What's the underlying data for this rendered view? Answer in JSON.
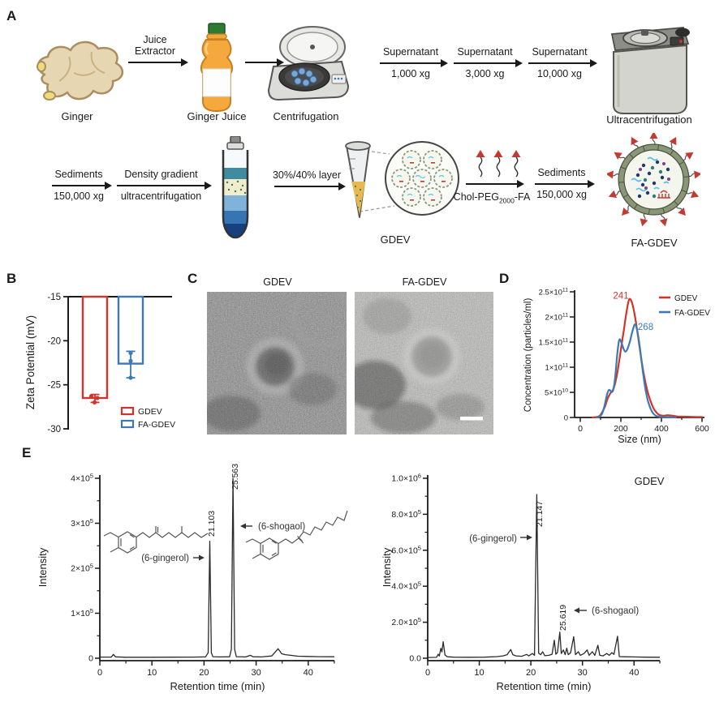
{
  "figure": {
    "panel_labels": {
      "a": "A",
      "b": "B",
      "c": "C",
      "d": "D",
      "e": "E"
    }
  },
  "panel_a": {
    "ginger": "Ginger",
    "ginger_juice": "Ginger Juice",
    "centrifugation": "Centrifugation",
    "ultracentrifugation": "Ultracentrifugation",
    "juice_extractor_line1": "Juice",
    "juice_extractor_line2": "Extractor",
    "supernatant1_top": "Supernatant",
    "supernatant1_bottom": "1,000 xg",
    "supernatant2_top": "Supernatant",
    "supernatant2_bottom": "3,000 xg",
    "supernatant3_top": "Supernatant",
    "supernatant3_bottom": "10,000 xg",
    "sediments1_top": "Sediments",
    "sediments1_bottom": "150,000 xg",
    "density_top": "Density gradient",
    "density_bottom": "ultracentrifugation",
    "layer_top": "30%/40% layer",
    "chol_main": "Chol-PEG",
    "chol_sub": "2000",
    "chol_suffix": "-FA",
    "sediments2_top": "Sediments",
    "sediments2_bottom": "150,000 xg",
    "gdev": "GDEV",
    "fa_gdev": "FA-GDEV"
  },
  "panel_c": {
    "left_title": "GDEV",
    "right_title": "FA-GDEV"
  },
  "colors": {
    "red": "#d0342b",
    "blue": "#3d7ab5",
    "line": "#2a2a2a"
  },
  "chart_data": [
    {
      "id": "zeta",
      "type": "bar",
      "ylabel": "Zeta Potential (mV)",
      "ylim": [
        -15,
        -30
      ],
      "yticks": [
        -15,
        -20,
        -25,
        -30
      ],
      "series": [
        {
          "name": "GDEV",
          "color": "#d0342b",
          "mean": -26.5,
          "err": [
            -27.0,
            -26.1
          ],
          "points": [
            -26.3,
            -26.5,
            -27.0
          ]
        },
        {
          "name": "FA-GDEV",
          "color": "#3d7ab5",
          "mean": -22.6,
          "err": [
            -24.2,
            -21.2
          ],
          "points": [
            -21.4,
            -22.3,
            -24.2
          ]
        }
      ]
    },
    {
      "id": "size",
      "type": "line",
      "xlabel": "Size (nm)",
      "ylabel": "Concentration (particles/ml)",
      "xlim": [
        0,
        600
      ],
      "xticks": [
        0,
        200,
        400,
        600
      ],
      "xticks_minor": [
        100,
        300,
        500
      ],
      "ylim": [
        0,
        250000000000.0
      ],
      "yticks": [
        {
          "label": "0",
          "v": 0
        },
        {
          "label": "5×10^10",
          "v": 50000000000.0
        },
        {
          "label": "1×10^11",
          "v": 100000000000.0
        },
        {
          "label": "1.5×10^11",
          "v": 150000000000.0
        },
        {
          "label": "2×10^11",
          "v": 200000000000.0
        },
        {
          "label": "2.5×10^11",
          "v": 250000000000.0
        }
      ],
      "legend": [
        {
          "name": "GDEV",
          "color": "#d0342b"
        },
        {
          "name": "FA-GDEV",
          "color": "#3d7ab5"
        }
      ],
      "annotations": [
        {
          "text": "241",
          "color": "#d0342b",
          "x": 200,
          "y": 236000000000.0
        },
        {
          "text": "268",
          "color": "#3d7ab5",
          "x": 322,
          "y": 174000000000.0
        }
      ],
      "series": [
        {
          "name": "GDEV",
          "color": "#d0342b",
          "points": [
            [
              60,
              0
            ],
            [
              80,
              1000000000.0
            ],
            [
              95,
              3000000000.0
            ],
            [
              110,
              12000000000.0
            ],
            [
              122,
              22000000000.0
            ],
            [
              135,
              38000000000.0
            ],
            [
              148,
              48000000000.0
            ],
            [
              160,
              54000000000.0
            ],
            [
              172,
              68000000000.0
            ],
            [
              185,
              95000000000.0
            ],
            [
              200,
              135000000000.0
            ],
            [
              215,
              175000000000.0
            ],
            [
              228,
              210000000000.0
            ],
            [
              241,
              235000000000.0
            ],
            [
              255,
              228000000000.0
            ],
            [
              270,
              200000000000.0
            ],
            [
              285,
              160000000000.0
            ],
            [
              300,
              118000000000.0
            ],
            [
              315,
              82000000000.0
            ],
            [
              330,
              54000000000.0
            ],
            [
              345,
              34000000000.0
            ],
            [
              360,
              19000000000.0
            ],
            [
              375,
              10000000000.0
            ],
            [
              390,
              5000000000.0
            ],
            [
              410,
              3500000000.0
            ],
            [
              430,
              4500000000.0
            ],
            [
              455,
              3500000000.0
            ],
            [
              480,
              2000000000.0
            ],
            [
              520,
              1500000000.0
            ],
            [
              560,
              1000000000.0
            ],
            [
              600,
              800000000.0
            ]
          ]
        },
        {
          "name": "FA-GDEV",
          "color": "#3d7ab5",
          "points": [
            [
              82,
              0
            ],
            [
              95,
              2000000000.0
            ],
            [
              108,
              8000000000.0
            ],
            [
              120,
              24000000000.0
            ],
            [
              132,
              46000000000.0
            ],
            [
              142,
              55000000000.0
            ],
            [
              152,
              52000000000.0
            ],
            [
              162,
              54000000000.0
            ],
            [
              172,
              80000000000.0
            ],
            [
              182,
              125000000000.0
            ],
            [
              192,
              154000000000.0
            ],
            [
              202,
              150000000000.0
            ],
            [
              212,
              138000000000.0
            ],
            [
              222,
              131000000000.0
            ],
            [
              232,
              136000000000.0
            ],
            [
              245,
              152000000000.0
            ],
            [
              256,
              170000000000.0
            ],
            [
              268,
              185000000000.0
            ],
            [
              278,
              178000000000.0
            ],
            [
              290,
              150000000000.0
            ],
            [
              302,
              112000000000.0
            ],
            [
              315,
              72000000000.0
            ],
            [
              328,
              42000000000.0
            ],
            [
              342,
              22000000000.0
            ],
            [
              356,
              10000000000.0
            ],
            [
              370,
              4000000000.0
            ],
            [
              390,
              1500000000.0
            ],
            [
              420,
              800000000.0
            ],
            [
              455,
              300000000.0
            ],
            [
              470,
              0
            ]
          ]
        }
      ]
    },
    {
      "id": "hplc_std",
      "type": "line",
      "xlabel": "Retention time (min)",
      "ylabel": "Intensity",
      "xlim": [
        0,
        45
      ],
      "xticks": [
        0,
        10,
        20,
        30,
        40
      ],
      "xticks_minor": [
        5,
        15,
        25,
        35,
        45
      ],
      "ylim": [
        0,
        400000.0
      ],
      "yticks": [
        {
          "label": "0",
          "v": 0
        },
        {
          "label": "1×10^5",
          "v": 100000.0
        },
        {
          "label": "2×10^5",
          "v": 200000.0
        },
        {
          "label": "3×10^5",
          "v": 300000.0
        },
        {
          "label": "4×10^5",
          "v": 400000.0
        }
      ],
      "peaks": [
        {
          "label": "21.103",
          "t": 21.103,
          "height": 260000.0
        },
        {
          "label": "25.563",
          "t": 25.563,
          "height": 400000.0
        }
      ],
      "compounds": [
        {
          "text": "(6-gingerol)"
        },
        {
          "text": "(6-shogaol)"
        }
      ],
      "points": [
        [
          0,
          2500
        ],
        [
          2.2,
          2500
        ],
        [
          2.6,
          8500
        ],
        [
          3.0,
          3000
        ],
        [
          5,
          2200
        ],
        [
          10,
          2200
        ],
        [
          14,
          2400
        ],
        [
          18,
          2600
        ],
        [
          20.3,
          3000
        ],
        [
          20.8,
          12000
        ],
        [
          21.103,
          260000
        ],
        [
          21.4,
          12000
        ],
        [
          21.7,
          3500
        ],
        [
          23,
          2800
        ],
        [
          24.9,
          3200
        ],
        [
          25.25,
          20000
        ],
        [
          25.563,
          400000
        ],
        [
          25.88,
          20000
        ],
        [
          26.2,
          3500
        ],
        [
          28,
          2800
        ],
        [
          28.9,
          6500
        ],
        [
          29.4,
          3200
        ],
        [
          31,
          2800
        ],
        [
          33,
          5000
        ],
        [
          34.2,
          21000
        ],
        [
          34.9,
          10000
        ],
        [
          35.6,
          8000
        ],
        [
          36.6,
          6500
        ],
        [
          38,
          4500
        ],
        [
          40,
          4000
        ],
        [
          42,
          3500
        ],
        [
          45,
          3200
        ]
      ]
    },
    {
      "id": "hplc_gdev",
      "type": "line",
      "title": "GDEV",
      "xlabel": "Retention time (min)",
      "ylabel": "Intensity",
      "xlim": [
        0,
        45
      ],
      "xticks": [
        0,
        10,
        20,
        30,
        40
      ],
      "xticks_minor": [
        5,
        15,
        25,
        35,
        45
      ],
      "ylim": [
        0,
        1000000.0
      ],
      "yticks": [
        {
          "label": "0.0",
          "v": 0
        },
        {
          "label": "2.0×10^5",
          "v": 200000.0
        },
        {
          "label": "4.0×10^5",
          "v": 400000.0
        },
        {
          "label": "6.0×10^5",
          "v": 600000.0
        },
        {
          "label": "8.0×10^5",
          "v": 800000.0
        },
        {
          "label": "1.0×10^6",
          "v": 1000000.0
        }
      ],
      "peaks": [
        {
          "label": "21.147",
          "t": 21.147,
          "height": 910000.0
        },
        {
          "label": "25.619",
          "t": 25.619,
          "height": 145000.0
        }
      ],
      "compounds": [
        {
          "text": "(6-gingerol)"
        },
        {
          "text": "(6-shogaol)"
        }
      ],
      "points": [
        [
          0,
          4000
        ],
        [
          1.7,
          5000
        ],
        [
          2.05,
          22000
        ],
        [
          2.25,
          12000
        ],
        [
          2.55,
          55000
        ],
        [
          2.75,
          35000
        ],
        [
          3.0,
          92000
        ],
        [
          3.35,
          18000
        ],
        [
          3.8,
          8000
        ],
        [
          5,
          6000
        ],
        [
          8,
          5500
        ],
        [
          11,
          6000
        ],
        [
          13.5,
          9000
        ],
        [
          14.6,
          13000
        ],
        [
          15.4,
          20000
        ],
        [
          16.1,
          48000
        ],
        [
          16.5,
          20000
        ],
        [
          17.1,
          13000
        ],
        [
          18.2,
          11000
        ],
        [
          19.2,
          21000
        ],
        [
          19.6,
          13000
        ],
        [
          20.3,
          26000
        ],
        [
          20.7,
          16000
        ],
        [
          21.147,
          910000
        ],
        [
          21.5,
          28000
        ],
        [
          21.9,
          20000
        ],
        [
          22.3,
          36000
        ],
        [
          22.7,
          14000
        ],
        [
          23.5,
          16000
        ],
        [
          24.1,
          22000
        ],
        [
          24.55,
          100000
        ],
        [
          24.85,
          22000
        ],
        [
          25.15,
          32000
        ],
        [
          25.619,
          145000
        ],
        [
          25.9,
          26000
        ],
        [
          26.3,
          46000
        ],
        [
          26.65,
          20000
        ],
        [
          26.95,
          56000
        ],
        [
          27.25,
          20000
        ],
        [
          27.7,
          31000
        ],
        [
          28.3,
          120000
        ],
        [
          28.65,
          20000
        ],
        [
          29.2,
          36000
        ],
        [
          29.6,
          16000
        ],
        [
          30.3,
          26000
        ],
        [
          30.9,
          46000
        ],
        [
          31.3,
          16000
        ],
        [
          31.9,
          36000
        ],
        [
          32.4,
          16000
        ],
        [
          33.0,
          72000
        ],
        [
          33.35,
          16000
        ],
        [
          34.0,
          13000
        ],
        [
          34.7,
          26000
        ],
        [
          35.2,
          16000
        ],
        [
          35.7,
          31000
        ],
        [
          36.1,
          21000
        ],
        [
          36.8,
          122000
        ],
        [
          37.15,
          9000
        ],
        [
          38,
          8000
        ],
        [
          40,
          7000
        ],
        [
          42,
          6000
        ],
        [
          45,
          5500
        ]
      ]
    }
  ]
}
